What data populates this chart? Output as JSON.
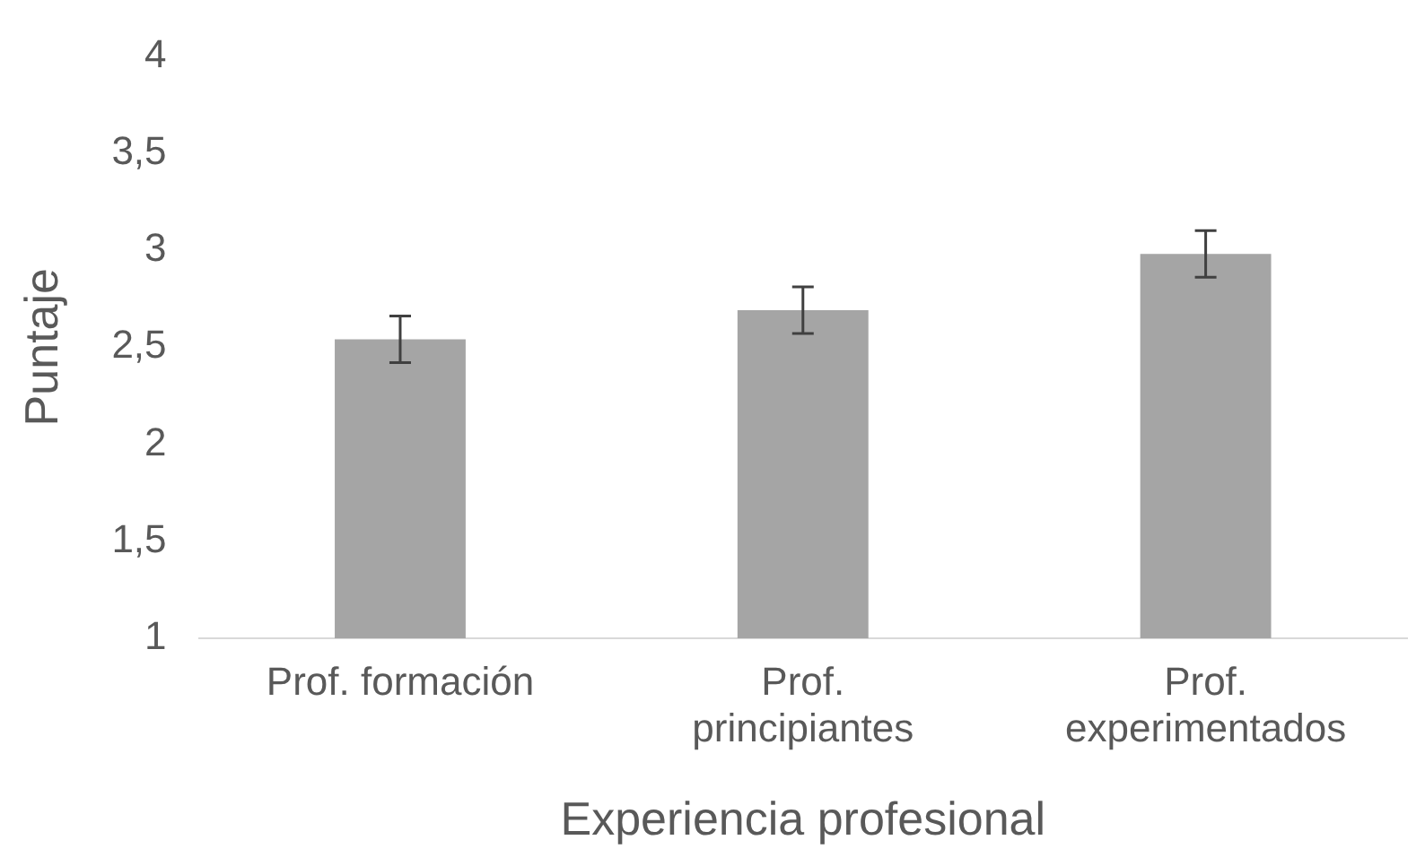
{
  "chart_data": {
    "type": "bar",
    "xlabel": "Experiencia profesional",
    "ylabel": "Puntaje",
    "categories": [
      "Prof. formación",
      "Prof. principiantes",
      "Prof. experimentados"
    ],
    "values": [
      2.54,
      2.69,
      2.98
    ],
    "errors": [
      0.12,
      0.12,
      0.12
    ],
    "color": "#a5a5a5",
    "ylim": [
      1,
      4
    ],
    "yticks": [
      1,
      {
        "value": 1.5,
        "label": "1,5"
      },
      2,
      {
        "value": 2.5,
        "label": "2,5"
      },
      3,
      {
        "value": 3.5,
        "label": "3,5"
      },
      4
    ],
    "grid": false,
    "legend": false
  }
}
